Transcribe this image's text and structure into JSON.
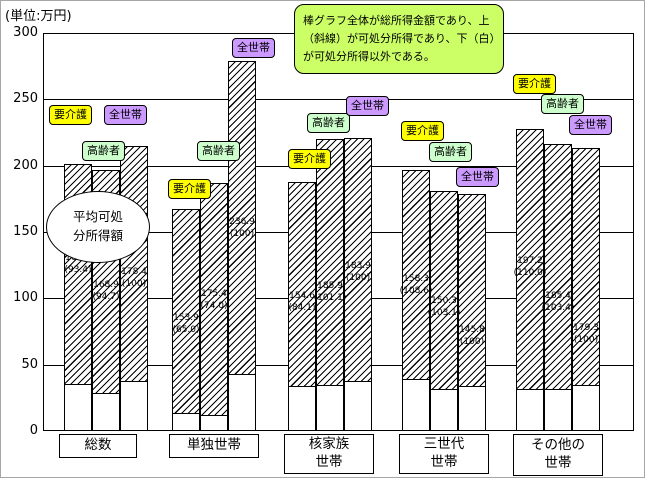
{
  "unit_label": "(単位:万円)",
  "note_text": "棒グラフ全体が総所得金額であり、上（斜線）が可処分所得であり、下（白）が可処分所得以外である。",
  "callout_lines": [
    "平均可処",
    "分所得額"
  ],
  "y_axis": {
    "ticks": [
      "300",
      "250",
      "200",
      "150",
      "100",
      "50",
      "0"
    ]
  },
  "series_defs": {
    "youkaigo": {
      "label": "要介護",
      "color": "#ffff00"
    },
    "koureisha": {
      "label": "高齢者",
      "color": "#ccffcc"
    },
    "zensetai": {
      "label": "全世帯",
      "color": "#cc99ff"
    }
  },
  "chart_data": {
    "type": "bar",
    "title": "平均可処分所得額",
    "unit": "万円",
    "ylim": [
      0,
      300
    ],
    "grid": true,
    "series_names": [
      "要介護",
      "高齢者",
      "全世帯"
    ],
    "categories": [
      {
        "label": "総数",
        "lines": [
          "総数"
        ]
      },
      {
        "label": "単独世帯",
        "lines": [
          "単独世帯"
        ]
      },
      {
        "label": "核家族世帯",
        "lines": [
          "核家族",
          "世帯"
        ]
      },
      {
        "label": "三世代世帯",
        "lines": [
          "三世代",
          "世帯"
        ]
      },
      {
        "label": "その他の世帯",
        "lines": [
          "その他の",
          "世帯"
        ]
      }
    ],
    "value_meaning": "可処分所得額(万円)、括弧内は各世帯構造の全世帯=100とした指数、棒全体の高さは総所得金額(目測値)",
    "groups": [
      {
        "category": "総数",
        "bars": [
          {
            "series": "要介護",
            "value": 166.6,
            "value_label": "166.6",
            "index_label": "(93.4)",
            "index_pct": 93.4,
            "total_est": 201
          },
          {
            "series": "高齢者",
            "value": 168.9,
            "value_label": "168.9",
            "index_label": "(94.7)",
            "index_pct": 94.7,
            "total_est": 197
          },
          {
            "series": "全世帯",
            "value": 178.4,
            "value_label": "178.4",
            "index_label": "(100)",
            "index_pct": 100,
            "total_est": 215
          }
        ]
      },
      {
        "category": "単独世帯",
        "bars": [
          {
            "series": "要介護",
            "value": 153.9,
            "value_label": "153.9",
            "index_label": "(65.0)",
            "index_pct": 65.0,
            "total_est": 167
          },
          {
            "series": "高齢者",
            "value": 175.4,
            "value_label": "175.4",
            "index_label": "(74.0)",
            "index_pct": 74.0,
            "total_est": 187
          },
          {
            "series": "全世帯",
            "value": 236.9,
            "value_label": "236.9",
            "index_label": "(100)",
            "index_pct": 100,
            "total_est": 279
          }
        ]
      },
      {
        "category": "核家族世帯",
        "bars": [
          {
            "series": "要介護",
            "value": 154.6,
            "value_label": "154.6",
            "index_label": "(84.1)",
            "index_pct": 84.1,
            "total_est": 188
          },
          {
            "series": "高齢者",
            "value": 185.9,
            "value_label": "185.9",
            "index_label": "(101.1)",
            "index_pct": 101.1,
            "total_est": 220
          },
          {
            "series": "全世帯",
            "value": 183.9,
            "value_label": "183.9",
            "index_label": "(100)",
            "index_pct": 100,
            "total_est": 221
          }
        ]
      },
      {
        "category": "三世代世帯",
        "bars": [
          {
            "series": "要介護",
            "value": 158.3,
            "value_label": "158.3",
            "index_label": "(108.6)",
            "index_pct": 108.6,
            "total_est": 197
          },
          {
            "series": "高齢者",
            "value": 150.3,
            "value_label": "150.3",
            "index_label": "(103.1)",
            "index_pct": 103.1,
            "total_est": 181
          },
          {
            "series": "全世帯",
            "value": 145.8,
            "value_label": "145.8",
            "index_label": "(100)",
            "index_pct": 100,
            "total_est": 179
          }
        ]
      },
      {
        "category": "その他の世帯",
        "bars": [
          {
            "series": "要介護",
            "value": 197.2,
            "value_label": "197.2",
            "index_label": "(110.0)",
            "index_pct": 110.0,
            "total_est": 228
          },
          {
            "series": "高齢者",
            "value": 185.4,
            "value_label": "185.4",
            "index_label": "(103.4)",
            "index_pct": 103.4,
            "total_est": 216
          },
          {
            "series": "全世帯",
            "value": 179.3,
            "value_label": "179.3",
            "index_label": "(100)",
            "index_pct": 100,
            "total_est": 213
          }
        ]
      }
    ]
  }
}
